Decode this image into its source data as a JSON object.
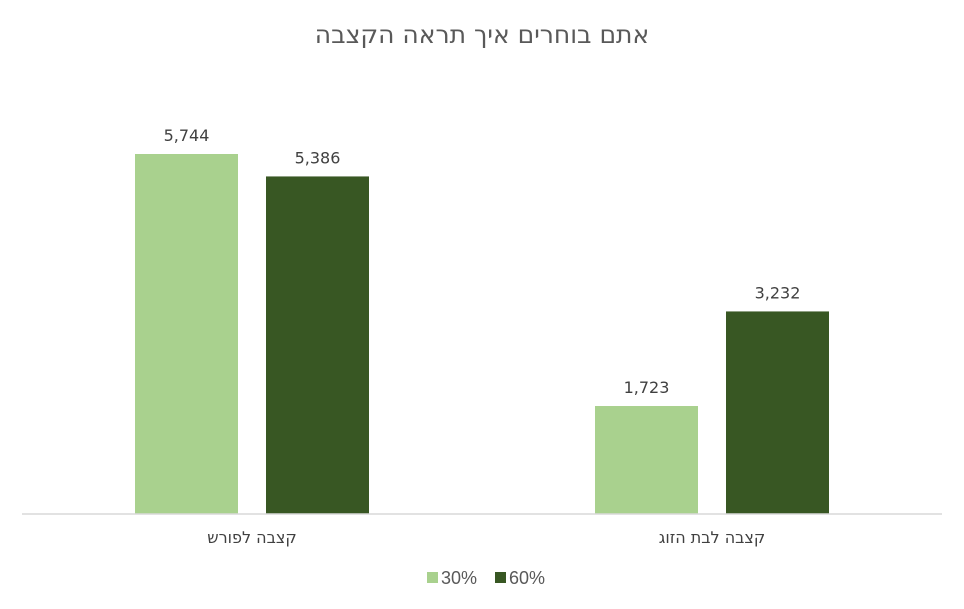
{
  "chart_data": {
    "type": "bar",
    "title": "אתם בוחרים איך תראה הקצבה",
    "xlabel": "",
    "ylabel": "",
    "categories": [
      "קצבה לפורש",
      "קצבה לבת הזוג"
    ],
    "series": [
      {
        "name": "30%",
        "color": "#a9d18e",
        "values": [
          5744,
          1723
        ],
        "labels": [
          "5,744",
          "1,723"
        ]
      },
      {
        "name": "60%",
        "color": "#385723",
        "values": [
          5386,
          3232
        ],
        "labels": [
          "5,386",
          "3,232"
        ]
      }
    ],
    "ylim": [
      0,
      5744
    ],
    "grid": false,
    "legend": "bottom"
  }
}
